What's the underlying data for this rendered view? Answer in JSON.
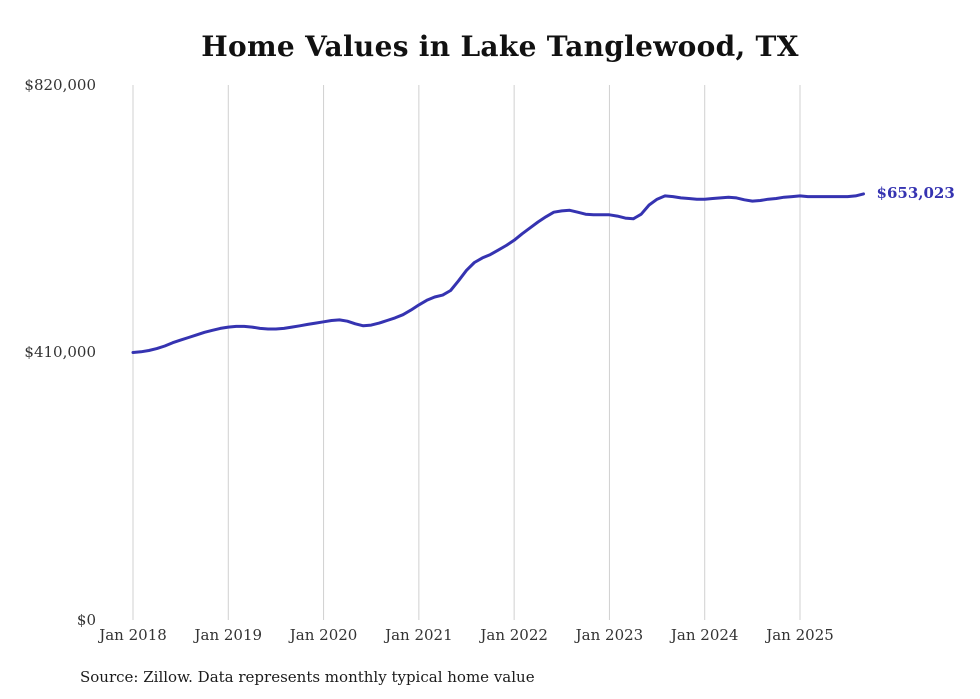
{
  "title": "Home Values in Lake Tanglewood, TX",
  "source_note": "Source: Zillow. Data represents monthly typical home value",
  "chart_data": {
    "type": "line",
    "title": "Home Values in Lake Tanglewood, TX",
    "series_name": "Monthly typical home value",
    "x_start": "Jan 2018",
    "x_freq": "monthly",
    "x_tick_labels": [
      "Jan 2018",
      "Jan 2019",
      "Jan 2020",
      "Jan 2021",
      "Jan 2022",
      "Jan 2023",
      "Jan 2024",
      "Jan 2025"
    ],
    "y_tick_labels": [
      "$820,000",
      "$410,000",
      "$0"
    ],
    "ylim": [
      0,
      820000
    ],
    "grid": "vertical-only",
    "legend": "none",
    "end_label": "$653,023",
    "final_value": 653023,
    "values": [
      410000,
      411000,
      413000,
      416000,
      420000,
      425000,
      429000,
      433000,
      437000,
      441000,
      444000,
      447000,
      449000,
      450000,
      450000,
      449000,
      447000,
      446000,
      446000,
      447000,
      449000,
      451000,
      453000,
      455000,
      457000,
      459000,
      460000,
      458000,
      454000,
      451000,
      452000,
      455000,
      459000,
      463000,
      468000,
      475000,
      483000,
      490000,
      495000,
      498000,
      505000,
      520000,
      536000,
      548000,
      555000,
      560000,
      567000,
      574000,
      582000,
      592000,
      601000,
      610000,
      618000,
      625000,
      627000,
      628000,
      625000,
      622000,
      621000,
      621000,
      621000,
      619000,
      616000,
      615000,
      622000,
      636000,
      645000,
      650000,
      649000,
      647000,
      646000,
      645000,
      645000,
      646000,
      647000,
      648000,
      647000,
      644000,
      642000,
      643000,
      645000,
      646000,
      648000,
      649000,
      650000,
      649000,
      649000,
      649000,
      649000,
      649000,
      649000,
      650000,
      653023
    ],
    "colors": {
      "line": "#3533b1",
      "end_label": "#3533b1",
      "grid": "#d0d0d0",
      "axis_text": "#333333",
      "title_text": "#111111",
      "source_text": "#1c1c1c",
      "background": "#ffffff"
    }
  }
}
